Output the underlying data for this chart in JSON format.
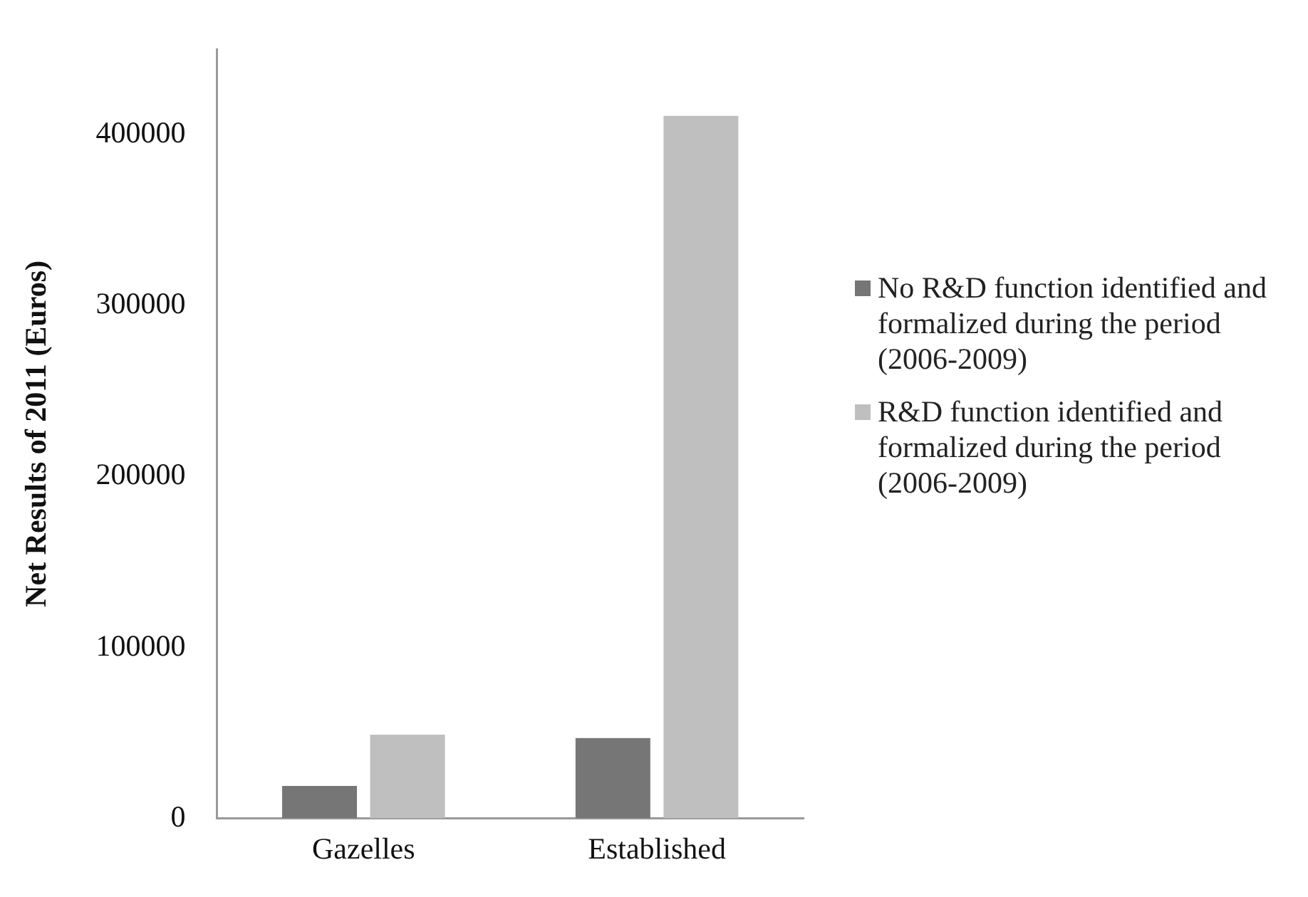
{
  "chart_data": {
    "type": "bar",
    "ylabel": "Net Results of 2011 (Euros)",
    "categories": [
      "Gazelles",
      "Established"
    ],
    "series": [
      {
        "name": "No R&D function identified and formalized during the period (2006-2009)",
        "color": "#767676",
        "values": [
          19000,
          47000
        ]
      },
      {
        "name": "R&D function identified and formalized during the period (2006-2009)",
        "color": "#bfbfbf",
        "values": [
          49000,
          411000
        ]
      }
    ],
    "ylim": [
      0,
      450000
    ],
    "yticks": [
      0,
      100000,
      200000,
      300000,
      400000
    ],
    "grid": false,
    "legend": "right"
  }
}
